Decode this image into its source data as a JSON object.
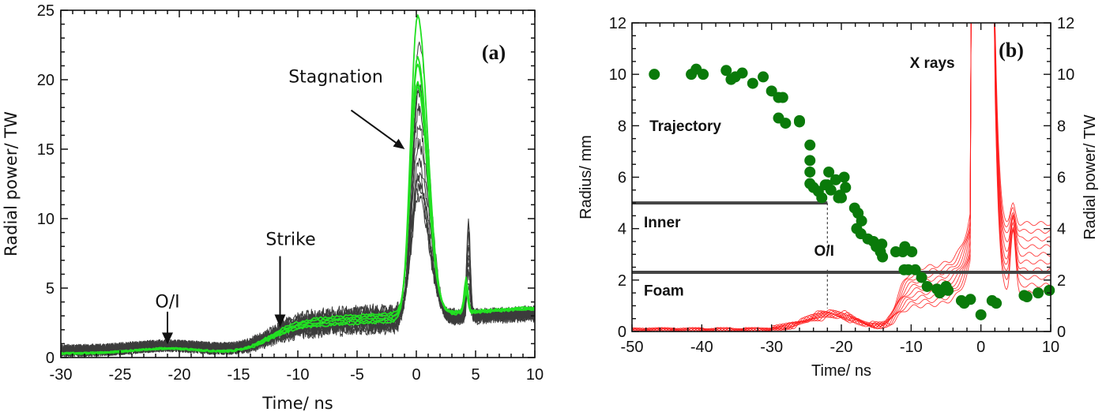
{
  "chart_data": [
    {
      "panel": "(a)",
      "type": "line",
      "title": "",
      "panel_label": "(a)",
      "xlabel": "Time/ ns",
      "ylabel": "Radial power/ TW",
      "xlim": [
        -30,
        10
      ],
      "ylim": [
        0,
        25
      ],
      "xticks": [
        -30,
        -25,
        -20,
        -15,
        -10,
        -5,
        0,
        5,
        10
      ],
      "yticks": [
        0,
        5,
        10,
        15,
        20,
        25
      ],
      "grid": false,
      "annotations": [
        {
          "text": "O/I",
          "x": -21,
          "y": 0.9,
          "kind": "arrow-down"
        },
        {
          "text": "Strike",
          "x": -11.5,
          "y": 1.8,
          "kind": "arrow-down"
        },
        {
          "text": "Stagnation",
          "x": -1.2,
          "y": 14.5,
          "kind": "arrow-diagonal"
        }
      ],
      "series_groups": [
        {
          "name": "gray shots",
          "color": "#3c3c3c",
          "count": 12,
          "peak_values": [
            22.5,
            19.6,
            19.4,
            19.0,
            17.8,
            16.5,
            15.3,
            14.0,
            13.0,
            12.7,
            12.2,
            11.5
          ],
          "peak_time": 0.2,
          "baseline_early": 0.5,
          "plateau_at_minus5": 2.6,
          "late_level_at_10": 2.8,
          "late_spike": {
            "x": 4.4,
            "y": 9.0
          }
        },
        {
          "name": "green shots",
          "color": "#22e022",
          "count": 5,
          "peak_values": [
            24.5,
            21.5,
            21.0,
            19.7,
            19.5
          ],
          "peak_time": 0.1,
          "baseline_early": 0.3,
          "plateau_at_minus5": 3.2,
          "late_level_at_10": 3.2,
          "late_spike": {
            "x": 4.2,
            "y": 7.0
          }
        }
      ]
    },
    {
      "panel": "(b)",
      "type": "scatter",
      "title": "",
      "panel_label": "(b)",
      "xlabel": "Time/ ns",
      "ylabel": "Radius/ mm",
      "ylabel_right": "Radial power/ TW",
      "xlim": [
        -50,
        10
      ],
      "ylim": [
        0,
        12
      ],
      "ylim_right": [
        0,
        12
      ],
      "xticks": [
        -50,
        -40,
        -30,
        -20,
        -10,
        0,
        10
      ],
      "yticks": [
        0,
        2,
        4,
        6,
        8,
        10,
        12
      ],
      "grid": false,
      "labels": {
        "trajectory": "Trajectory",
        "xrays": "X rays",
        "inner": "Inner",
        "foam": "Foam",
        "oi": "O/I"
      },
      "colors": {
        "trajectory": "#0a7a0a",
        "xrays": "#ff1a1a",
        "boundary": "#444444"
      },
      "boundaries": [
        {
          "name": "Inner",
          "radius": 5.0,
          "x_range": [
            -50,
            -22
          ]
        },
        {
          "name": "Foam",
          "radius": 2.3,
          "x_range": [
            -50,
            10
          ]
        }
      ],
      "oi_time": -22,
      "trajectory": {
        "x": [
          -46.8,
          -41.5,
          -40.8,
          -39.8,
          -36.5,
          -35.8,
          -35.2,
          -34.2,
          -32.7,
          -31.2,
          -30.0,
          -29.0,
          -28.4,
          -29.0,
          -28.0,
          -26.0,
          -26.0,
          -24.5,
          -24.5,
          -24.5,
          -24.5,
          -24.0,
          -23.3,
          -22.8,
          -22.3,
          -22.0,
          -21.5,
          -21.8,
          -20.8,
          -20.2,
          -20.0,
          -20.4,
          -19.4,
          -19.6,
          -18.1,
          -17.6,
          -17.1,
          -17.8,
          -17.2,
          -16.2,
          -15.4,
          -15.0,
          -14.4,
          -14.1,
          -14.2,
          -12.2,
          -11.2,
          -10.9,
          -9.9,
          -11.0,
          -10.4,
          -9.4,
          -8.5,
          -7.7,
          -6.3,
          -5.9,
          -5.0,
          -4.7,
          -2.8,
          -2.4,
          -1.5,
          0.0,
          1.6,
          2.2,
          6.2,
          6.6,
          8.2,
          9.8
        ],
        "y": [
          10.0,
          10.0,
          10.2,
          10.0,
          10.15,
          9.8,
          9.9,
          10.05,
          9.65,
          9.9,
          9.35,
          9.1,
          9.1,
          8.3,
          8.1,
          8.2,
          8.15,
          7.25,
          6.65,
          6.2,
          5.75,
          5.6,
          5.45,
          5.2,
          5.7,
          5.7,
          5.5,
          6.2,
          5.9,
          5.3,
          5.2,
          5.2,
          5.6,
          6.0,
          4.8,
          4.6,
          4.3,
          4.0,
          3.8,
          3.6,
          3.5,
          3.3,
          3.1,
          2.9,
          3.4,
          3.1,
          3.1,
          3.3,
          3.1,
          2.4,
          2.4,
          2.4,
          2.1,
          1.75,
          1.65,
          1.5,
          1.75,
          1.6,
          1.2,
          1.1,
          1.25,
          0.65,
          1.2,
          1.1,
          1.4,
          1.35,
          1.5,
          1.6
        ]
      },
      "xrays": {
        "count": 10,
        "baseline_minus50_to_minus30": 0.1,
        "bump_at_minus22": 0.9,
        "shoulder_at_minus10_range": [
          1.0,
          2.5
        ],
        "peak_time": 0.0,
        "peak_exceeds": 12,
        "secondary_peak": {
          "x": 4.6,
          "y": 5.9
        },
        "level_at_10_range": [
          1.5,
          4.2
        ]
      }
    }
  ]
}
